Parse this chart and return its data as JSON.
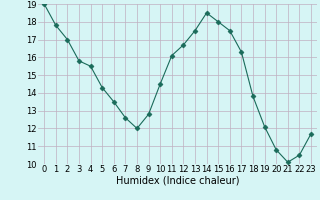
{
  "x": [
    0,
    1,
    2,
    3,
    4,
    5,
    6,
    7,
    8,
    9,
    10,
    11,
    12,
    13,
    14,
    15,
    16,
    17,
    18,
    19,
    20,
    21,
    22,
    23
  ],
  "y": [
    19.0,
    17.8,
    17.0,
    15.8,
    15.5,
    14.3,
    13.5,
    12.6,
    12.0,
    12.8,
    14.5,
    16.1,
    16.7,
    17.5,
    18.5,
    18.0,
    17.5,
    16.3,
    13.8,
    12.1,
    10.8,
    10.1,
    10.5,
    11.7
  ],
  "line_color": "#1a6b5a",
  "marker": "D",
  "marker_size": 2.5,
  "bg_color": "#d6f5f5",
  "grid_color": "#c0b0c0",
  "xlabel": "Humidex (Indice chaleur)",
  "xlabel_fontsize": 7,
  "tick_fontsize": 6,
  "ylim": [
    10,
    19
  ],
  "xlim": [
    -0.5,
    23.5
  ],
  "yticks": [
    10,
    11,
    12,
    13,
    14,
    15,
    16,
    17,
    18,
    19
  ],
  "xticks": [
    0,
    1,
    2,
    3,
    4,
    5,
    6,
    7,
    8,
    9,
    10,
    11,
    12,
    13,
    14,
    15,
    16,
    17,
    18,
    19,
    20,
    21,
    22,
    23
  ]
}
